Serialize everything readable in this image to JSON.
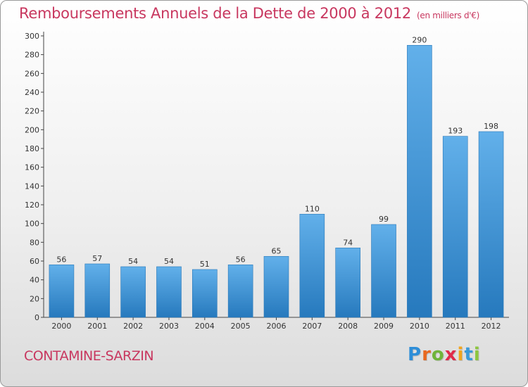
{
  "header": {
    "title": "Remboursements Annuels de la Dette de 2000 à 2012",
    "unit": "(en milliers d'€)"
  },
  "footer": {
    "city": "CONTAMINE-SARZIN",
    "logo_letters": [
      "P",
      "r",
      "o",
      "x",
      "i",
      "t",
      "i"
    ],
    "logo_colors": [
      "#2e8ed8",
      "#e8681f",
      "#6fb43a",
      "#e02a4a",
      "#f2a51d",
      "#3a9ad9",
      "#8dc63f"
    ]
  },
  "chart_data": {
    "type": "bar",
    "categories": [
      "2000",
      "2001",
      "2002",
      "2003",
      "2004",
      "2005",
      "2006",
      "2007",
      "2008",
      "2009",
      "2010",
      "2011",
      "2012"
    ],
    "values": [
      56,
      57,
      54,
      54,
      51,
      56,
      65,
      110,
      74,
      99,
      290,
      193,
      198
    ],
    "yticks": [
      0,
      20,
      40,
      60,
      80,
      100,
      120,
      140,
      160,
      180,
      200,
      220,
      240,
      260,
      280,
      300
    ],
    "ylim": [
      0,
      300
    ],
    "grid": false,
    "bar_color": "#3d96dc"
  }
}
